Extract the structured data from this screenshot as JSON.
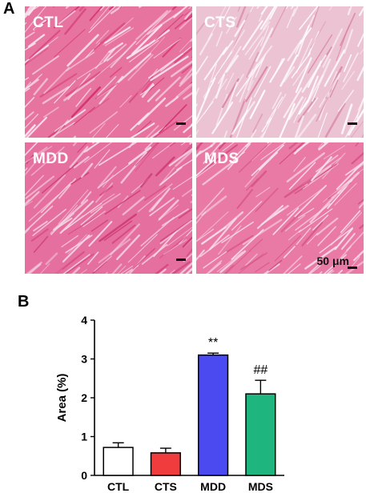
{
  "panel_a": {
    "letter": "A",
    "tiles": [
      {
        "label": "CTL",
        "base": "#e7739f",
        "streak": "#fbe9f1",
        "dark": "#d4306f"
      },
      {
        "label": "CTS",
        "base": "#ecc3d2",
        "streak": "#ffffff",
        "dark": "#d985a6"
      },
      {
        "label": "MDD",
        "base": "#e56f9e",
        "streak": "#f8dbe8",
        "dark": "#cf3a75"
      },
      {
        "label": "MDS",
        "base": "#e97aa5",
        "streak": "#fbe4ee",
        "dark": "#d34a80"
      }
    ],
    "scale_text": "50 μm"
  },
  "chart_data": {
    "letter": "B",
    "type": "bar",
    "categories": [
      "CTL",
      "CTS",
      "MDD",
      "MDS"
    ],
    "values": [
      0.72,
      0.58,
      3.1,
      2.1
    ],
    "errors": [
      0.12,
      0.12,
      0.05,
      0.35
    ],
    "colors": [
      "#ffffff",
      "#f03c3c",
      "#4a4af0",
      "#1fb57e"
    ],
    "annotations": [
      "",
      "",
      "**",
      "##"
    ],
    "ylabel": "Area (%)",
    "ylim": [
      0,
      4
    ],
    "yticks": [
      0,
      1,
      2,
      3,
      4
    ],
    "grid": false
  }
}
